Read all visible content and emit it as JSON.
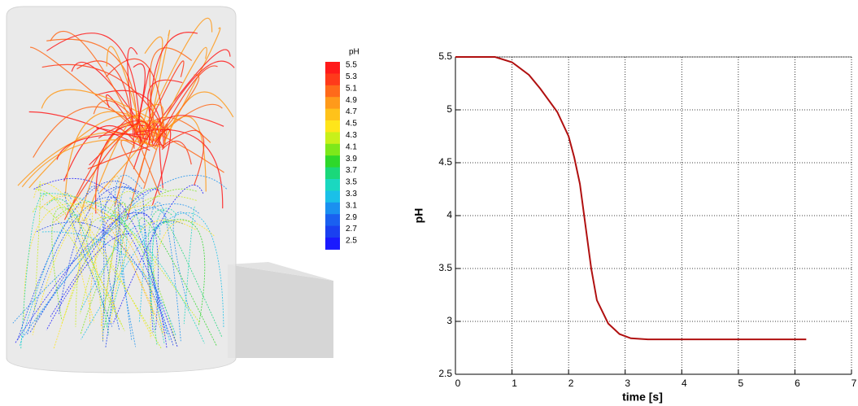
{
  "chart_data": [
    {
      "type": "colorbar",
      "title": "pH",
      "ticks": [
        5.5,
        5.3,
        5.1,
        4.9,
        4.7,
        4.5,
        4.3,
        4.1,
        3.9,
        3.7,
        3.5,
        3.3,
        3.1,
        2.9,
        2.7,
        2.5
      ],
      "colors": [
        "#ff1a1a",
        "#ff3a1a",
        "#ff6a1a",
        "#ff9a1a",
        "#ffc21a",
        "#ffe51a",
        "#c8f01a",
        "#7de81a",
        "#2ed82a",
        "#1ad87a",
        "#1ad8c0",
        "#1ac0e8",
        "#1a90f0",
        "#1a60f0",
        "#1a40f0",
        "#1a1aff"
      ]
    },
    {
      "type": "line",
      "xlabel": "time [s]",
      "ylabel": "pH",
      "xlim": [
        0,
        7
      ],
      "ylim": [
        2.5,
        5.5
      ],
      "xticks": [
        0,
        1,
        2,
        3,
        4,
        5,
        6,
        7
      ],
      "yticks": [
        2.5,
        3,
        3.5,
        4,
        4.5,
        5,
        5.5
      ],
      "grid": true,
      "series": [
        {
          "color": "#b01010",
          "x": [
            0,
            0.7,
            1.0,
            1.3,
            1.5,
            1.8,
            2.0,
            2.1,
            2.2,
            2.3,
            2.4,
            2.5,
            2.7,
            2.9,
            3.1,
            3.4,
            6.2
          ],
          "values": [
            5.5,
            5.5,
            5.45,
            5.33,
            5.2,
            4.98,
            4.75,
            4.55,
            4.3,
            3.9,
            3.5,
            3.2,
            2.98,
            2.88,
            2.84,
            2.83,
            2.83
          ]
        }
      ]
    }
  ]
}
